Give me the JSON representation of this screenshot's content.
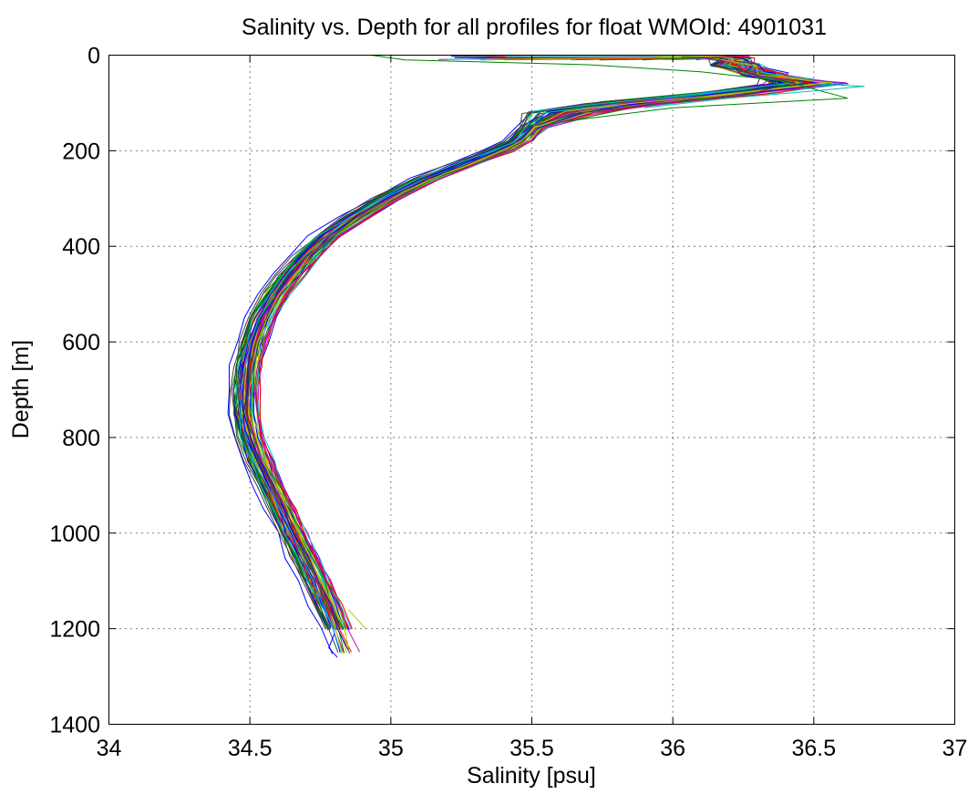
{
  "chart_data": {
    "type": "line",
    "title": "Salinity vs. Depth for all profiles for float WMOId: 4901031",
    "xlabel": "Salinity [psu]",
    "ylabel": "Depth [m]",
    "xlim": [
      34,
      37
    ],
    "ylim": [
      0,
      1400
    ],
    "y_reversed": true,
    "grid": true,
    "x_ticks": [
      34,
      34.5,
      35,
      35.5,
      36,
      36.5,
      37
    ],
    "x_tick_labels": [
      "34",
      "34.5",
      "35",
      "35.5",
      "36",
      "36.5",
      "37"
    ],
    "y_ticks": [
      0,
      200,
      400,
      600,
      800,
      1000,
      1200,
      1400
    ],
    "y_tick_labels": [
      "0",
      "200",
      "400",
      "600",
      "800",
      "1000",
      "1200",
      "1400"
    ],
    "colors": [
      "#0000ff",
      "#008000",
      "#ff0000",
      "#00bfbf",
      "#bf00bf",
      "#bfbf00",
      "#404040"
    ],
    "series_count": 70,
    "mean_profile": {
      "depth": [
        5,
        20,
        40,
        60,
        80,
        100,
        120,
        150,
        180,
        200,
        230,
        260,
        300,
        340,
        380,
        420,
        460,
        500,
        550,
        600,
        650,
        700,
        750,
        800,
        850,
        900,
        950,
        1000,
        1050,
        1100,
        1150,
        1200,
        1250
      ],
      "salinity": [
        36.2,
        36.22,
        36.32,
        36.45,
        36.2,
        35.85,
        35.62,
        35.5,
        35.45,
        35.38,
        35.25,
        35.12,
        34.98,
        34.87,
        34.77,
        34.7,
        34.64,
        34.59,
        34.54,
        34.51,
        34.49,
        34.48,
        34.48,
        34.5,
        34.53,
        34.57,
        34.61,
        34.65,
        34.69,
        34.73,
        34.77,
        34.81,
        34.84
      ]
    },
    "outliers": [
      {
        "depth": [
          0,
          10,
          20,
          35,
          55,
          90,
          110,
          140
        ],
        "salinity": [
          34.93,
          35.05,
          35.7,
          36.1,
          36.4,
          36.62,
          36.0,
          35.6
        ]
      },
      {
        "depth": [
          60,
          65,
          75,
          90,
          110
        ],
        "salinity": [
          36.5,
          36.68,
          36.5,
          36.2,
          35.9
        ]
      },
      {
        "depth": [
          1160,
          1180,
          1200
        ],
        "salinity": [
          34.85,
          34.88,
          34.91
        ]
      },
      {
        "depth": [
          1210,
          1240,
          1260
        ],
        "salinity": [
          34.8,
          34.78,
          34.81
        ]
      }
    ]
  }
}
